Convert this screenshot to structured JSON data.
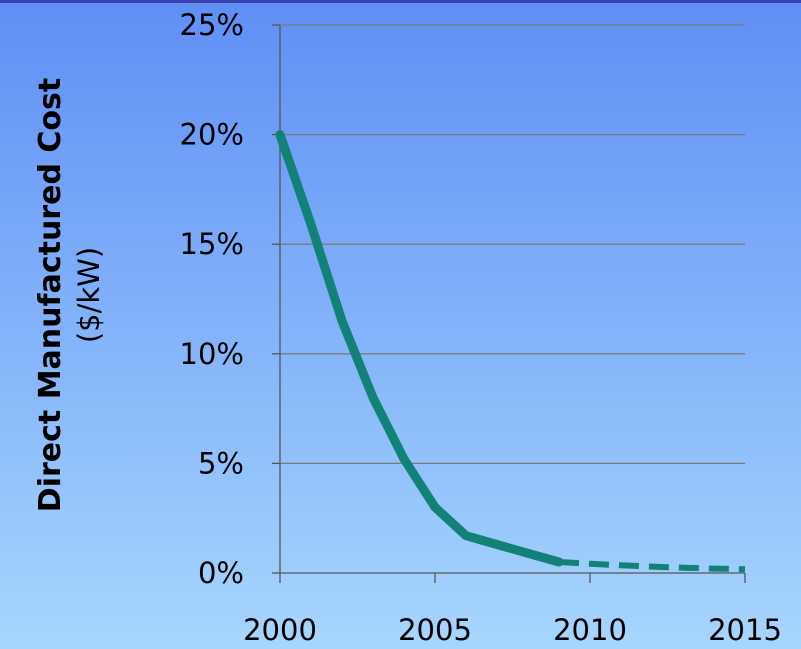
{
  "chart_data": {
    "type": "line",
    "ylabel": "Direct Manufactured Cost",
    "ylabel_unit": "($/kW)",
    "x_ticks": [
      "2000",
      "2005",
      "2010",
      "2015"
    ],
    "y_ticks": [
      "0%",
      "5%",
      "10%",
      "15%",
      "20%",
      "25%"
    ],
    "xlim": [
      2000,
      2015
    ],
    "ylim": [
      0,
      25
    ],
    "grid": "horizontal",
    "series": [
      {
        "style": "solid",
        "color": "#128177",
        "x": [
          2000,
          2001,
          2002,
          2003,
          2004,
          2005,
          2006,
          2007,
          2008,
          2009
        ],
        "y": [
          20,
          15.9,
          11.5,
          8.0,
          5.2,
          3.0,
          1.7,
          1.3,
          0.9,
          0.5
        ]
      },
      {
        "style": "dashed",
        "color": "#128177",
        "x": [
          2009,
          2010,
          2011,
          2012,
          2013,
          2014,
          2015
        ],
        "y": [
          0.5,
          0.42,
          0.35,
          0.29,
          0.24,
          0.2,
          0.17
        ]
      }
    ]
  },
  "colors": {
    "gridline": "#7b7b7b",
    "axis": "#555555",
    "line": "#128177"
  }
}
